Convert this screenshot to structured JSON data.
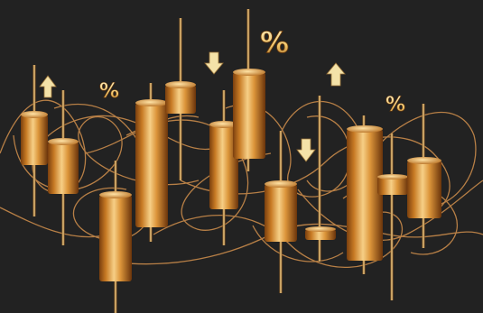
{
  "scene": {
    "background": "#222222",
    "gold_light": "#f4c77a",
    "gold_mid": "#d48a2e",
    "gold_dark": "#8a4a12",
    "wire_color": "#c88a4a",
    "arrow_color": "#f4e2a8"
  },
  "symbols": {
    "percent": "%"
  }
}
